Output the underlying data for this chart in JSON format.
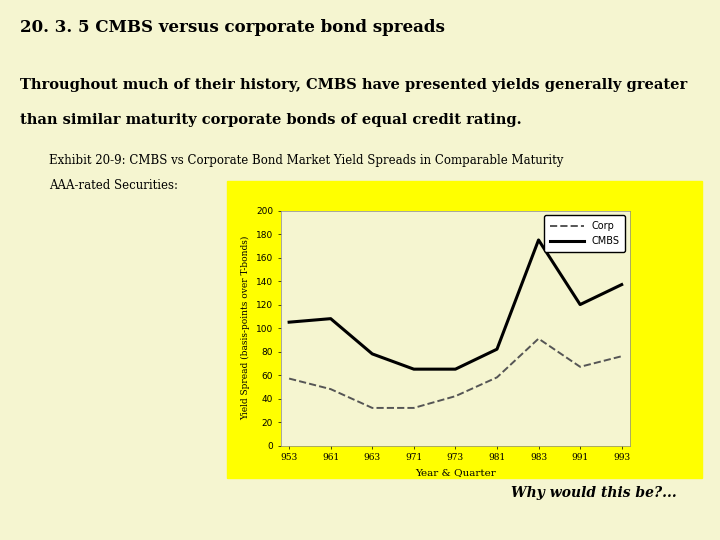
{
  "title": "20. 3. 5 CMBS versus corporate bond spreads",
  "body_text_line1": "Throughout much of their history, CMBS have presented yields generally greater",
  "body_text_line2": "than similar maturity corporate bonds of equal credit rating.",
  "exhibit_label_line1": "Exhibit 20-9: CMBS vs Corporate Bond Market Yield Spreads in Comparable Maturity",
  "exhibit_label_line2": "AAA-rated Securities:",
  "italic_text": "Why would this be?...",
  "slide_bg": "#f5f5d0",
  "chart_outer_bg": "#ffff00",
  "chart_inner_bg": "#f5f5d0",
  "xlabel": "Year & Quarter",
  "ylabel": "Yield Spread (basis-points over T-bonds)",
  "x_labels": [
    "953",
    "961",
    "963",
    "971",
    "973",
    "981",
    "983",
    "991",
    "993"
  ],
  "x_values": [
    0,
    1,
    2,
    3,
    4,
    5,
    6,
    7,
    8
  ],
  "cmbs_values": [
    105,
    108,
    78,
    65,
    65,
    82,
    175,
    120,
    137
  ],
  "corp_values": [
    57,
    48,
    32,
    32,
    42,
    58,
    91,
    67,
    76
  ],
  "ylim": [
    0,
    200
  ],
  "yticks": [
    0,
    20,
    40,
    60,
    80,
    100,
    120,
    140,
    160,
    180,
    200
  ],
  "cmbs_color": "#000000",
  "corp_color": "#555555",
  "title_fontsize": 12,
  "body_fontsize": 10.5,
  "exhibit_fontsize": 8.5,
  "italic_fontsize": 10
}
